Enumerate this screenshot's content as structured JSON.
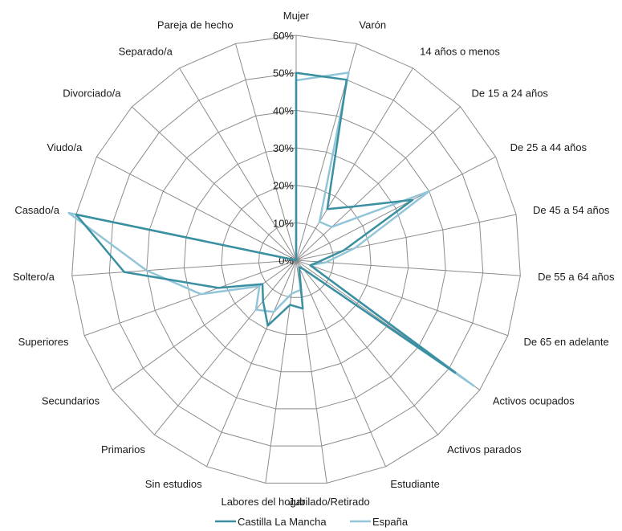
{
  "chart_data": {
    "type": "radar",
    "title": "",
    "categories": [
      "Mujer",
      "Varón",
      "14 años o menos",
      "De 15 a 24 años",
      "De 25 a 44 años",
      "De 45 a 54 años",
      "De 55 a 64 años",
      "De 65 en adelante",
      "Activos ocupados",
      "Activos parados",
      "Estudiante",
      "Jubilado/Retirado",
      "Labores del hogar",
      "Sin estudios",
      "Primarios",
      "Secundarios",
      "Superiores",
      "Soltero/a",
      "Casado/a",
      "Viudo/a",
      "Divorciado/a",
      "Separado/a",
      "Pareja de hecho"
    ],
    "rlim": [
      0,
      60
    ],
    "ticks": [
      "0%",
      "10%",
      "20%",
      "30%",
      "40%",
      "50%",
      "60%"
    ],
    "tick_values": [
      0,
      10,
      20,
      30,
      40,
      50,
      60
    ],
    "grid": true,
    "legend_position": "bottom",
    "series": [
      {
        "name": "Castilla La Mancha",
        "color": "#3a8fa0",
        "values": [
          50,
          50,
          16,
          21,
          35,
          13,
          6,
          4,
          52,
          3,
          2,
          13,
          12,
          19,
          14,
          11,
          22,
          46,
          60,
          0,
          0,
          0,
          0
        ]
      },
      {
        "name": "España",
        "color": "#92c5d8",
        "values": [
          48,
          52,
          12,
          13,
          40,
          16,
          8,
          4,
          58,
          3,
          2,
          8,
          9,
          15,
          17,
          12,
          27,
          40,
          62,
          0,
          0,
          0,
          0
        ]
      }
    ]
  }
}
